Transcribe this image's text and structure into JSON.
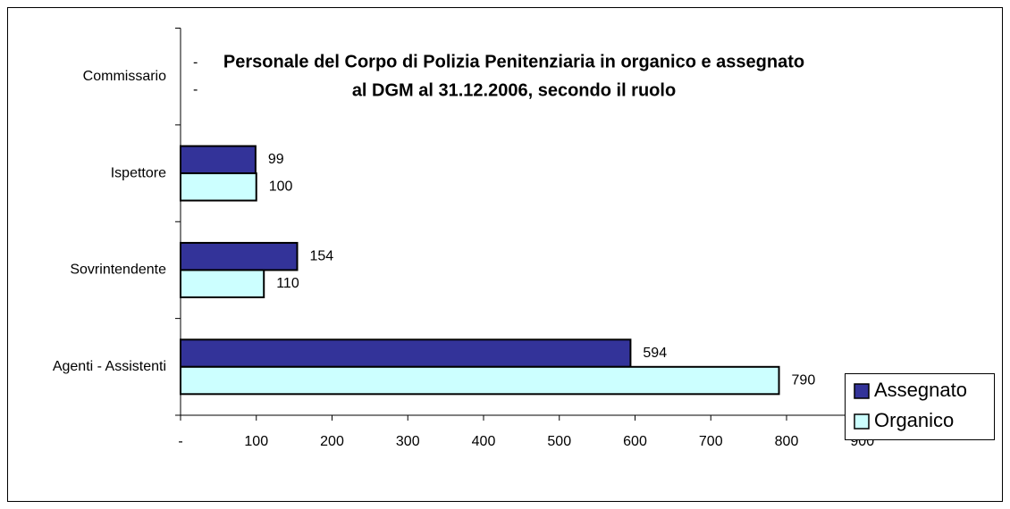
{
  "chart_data": {
    "type": "hbar",
    "title": [
      "Personale del Corpo di Polizia Penitenziaria in organico e assegnato",
      "al DGM al 31.12.2006, secondo il ruolo"
    ],
    "categories": [
      "Commissario",
      "Ispettore",
      "Sovrintendente",
      "Agenti - Assistenti"
    ],
    "series": [
      {
        "name": "Assegnato",
        "color": "#333399",
        "values": [
          0,
          99,
          154,
          594
        ],
        "value_labels": [
          "-",
          "99",
          "154",
          "594"
        ]
      },
      {
        "name": "Organico",
        "color": "#ccffff",
        "values": [
          0,
          100,
          110,
          790
        ],
        "value_labels": [
          "-",
          "100",
          "110",
          "790"
        ]
      }
    ],
    "xlim": [
      0,
      900
    ],
    "xticks": [
      {
        "value": 0,
        "label": "-"
      },
      100,
      200,
      300,
      400,
      500,
      600,
      700,
      800,
      900
    ],
    "legend": "right"
  }
}
